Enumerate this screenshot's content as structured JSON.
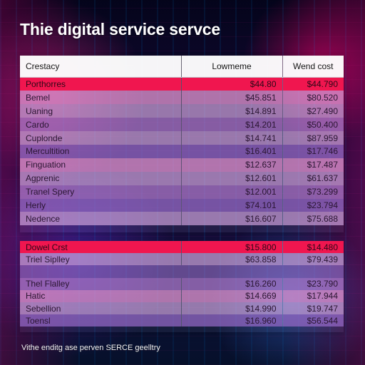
{
  "title": "Thie digital service servce",
  "footer": "Vithe enditg ase perven SERCE geelltry",
  "colors": {
    "section_band": "#f0164f",
    "header_bg": "#ffffff"
  },
  "chart_data": {
    "type": "table",
    "title": "Thie digital service servce",
    "columns": [
      "Crestacy",
      "Lowmeme",
      "Wend cost"
    ],
    "sections": [
      {
        "label": "Porthorres",
        "values": [
          "$44.80",
          "$44.790"
        ],
        "rows": [
          {
            "label": "Bemel",
            "values": [
              "$45.851",
              "$80.520"
            ]
          },
          {
            "label": "Uaning",
            "values": [
              "$14.891",
              "$27.490"
            ]
          },
          {
            "label": "Cardo",
            "values": [
              "$14.201",
              "$50.400"
            ]
          },
          {
            "label": "Cuplonde",
            "values": [
              "$14.741",
              "$87.959"
            ]
          },
          {
            "label": "Mercultition",
            "values": [
              "$16.401",
              "$17.746"
            ]
          },
          {
            "label": "Finguation",
            "values": [
              "$12.637",
              "$17.487"
            ]
          },
          {
            "label": "Agprenic",
            "values": [
              "$12.601",
              "$61.637"
            ]
          },
          {
            "label": "Tranel Spery",
            "values": [
              "$12.001",
              "$73.299"
            ]
          },
          {
            "label": "Herly",
            "values": [
              "$74.101",
              "$23.794"
            ]
          },
          {
            "label": "Nedence",
            "values": [
              "$16.607",
              "$75.688"
            ]
          }
        ]
      },
      {
        "label": "Dowel Crst",
        "values": [
          "$15.800",
          "$14.480"
        ],
        "rows": [
          {
            "label": "Triel Siplley",
            "values": [
              "$63.858",
              "$79.439"
            ]
          },
          {
            "label": "Thel Flalley",
            "values": [
              "$16.260",
              "$23.790"
            ]
          },
          {
            "label": "Hatic",
            "values": [
              "$14.669",
              "$17.944"
            ]
          },
          {
            "label": "Sebellion",
            "values": [
              "$14.990",
              "$19.747"
            ]
          },
          {
            "label": "Toensl",
            "values": [
              "$16.960",
              "$56.544"
            ]
          }
        ]
      }
    ]
  }
}
